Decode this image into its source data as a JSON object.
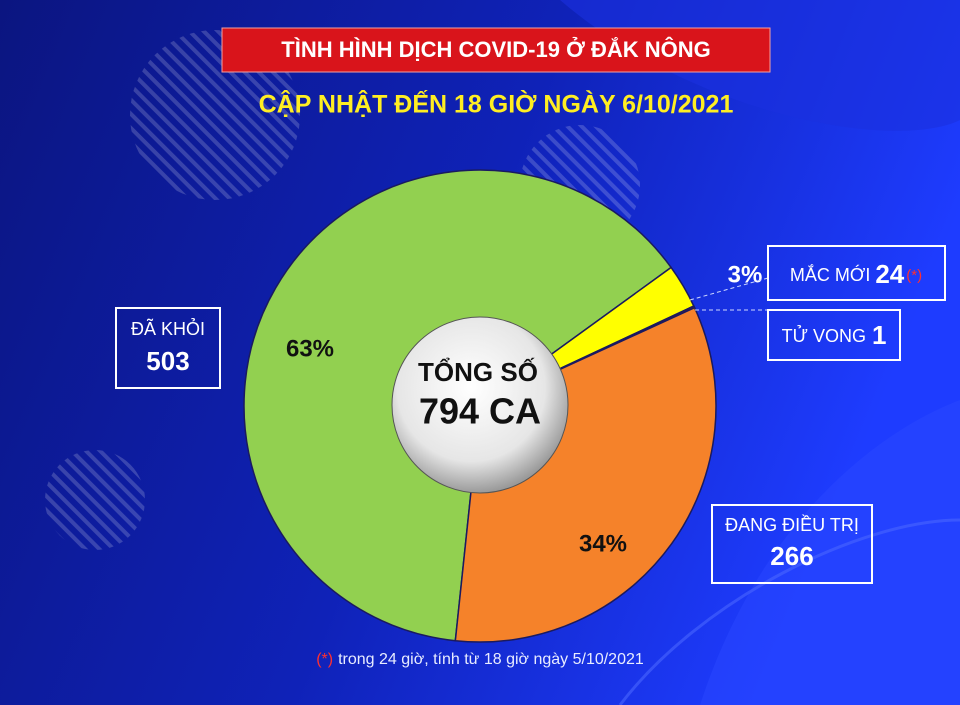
{
  "chart_data": {
    "type": "pie",
    "title": "TÌNH HÌNH DỊCH COVID-19 Ở ĐẮK NÔNG",
    "subtitle": "CẬP NHẬT ĐẾN 18 GIỜ NGÀY 6/10/2021",
    "center_label": "TỔNG SỐ",
    "center_value": "794 CA",
    "categories": [
      "ĐÃ KHỎI",
      "MẮC MỚI",
      "TỬ VONG",
      "ĐANG ĐIỀU TRỊ"
    ],
    "values": [
      503,
      24,
      1,
      266
    ],
    "colors": [
      "#92d050",
      "#ffff00",
      "#8b1a1a",
      "#f5822a"
    ],
    "percent_labels": [
      "63%",
      "3%",
      null,
      "34%"
    ],
    "new_case_marker": "(*)",
    "footnote": {
      "marker": "(*)",
      "text": "trong 24 giờ, tính từ 18 giờ ngày 5/10/2021"
    }
  }
}
